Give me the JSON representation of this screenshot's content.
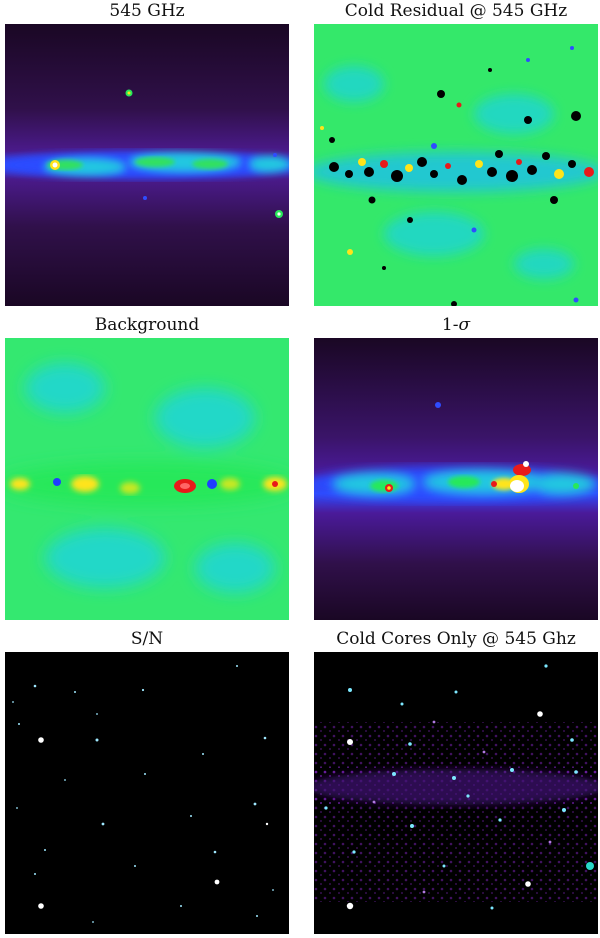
{
  "panels": [
    {
      "id": "p545",
      "title": "545 GHz",
      "style": "intensity"
    },
    {
      "id": "pres",
      "title": "Cold Residual @ 545 GHz",
      "style": "residual"
    },
    {
      "id": "pbg",
      "title": "Background",
      "style": "background"
    },
    {
      "id": "psig",
      "title_main": "1-",
      "title_sym": "σ",
      "style": "sigma"
    },
    {
      "id": "psn",
      "title": "S/N",
      "style": "sn"
    },
    {
      "id": "pcold",
      "title": "Cold Cores Only @ 545 Ghz",
      "style": "cores"
    }
  ],
  "colors": {
    "dark_purple": "#1a0724",
    "purple": "#5a1a86",
    "blue": "#1f3dff",
    "cyan": "#22d8e0",
    "green": "#28e85a",
    "yellow": "#ffe41a",
    "red": "#e81a1a",
    "black": "#000000",
    "white": "#ffffff"
  }
}
